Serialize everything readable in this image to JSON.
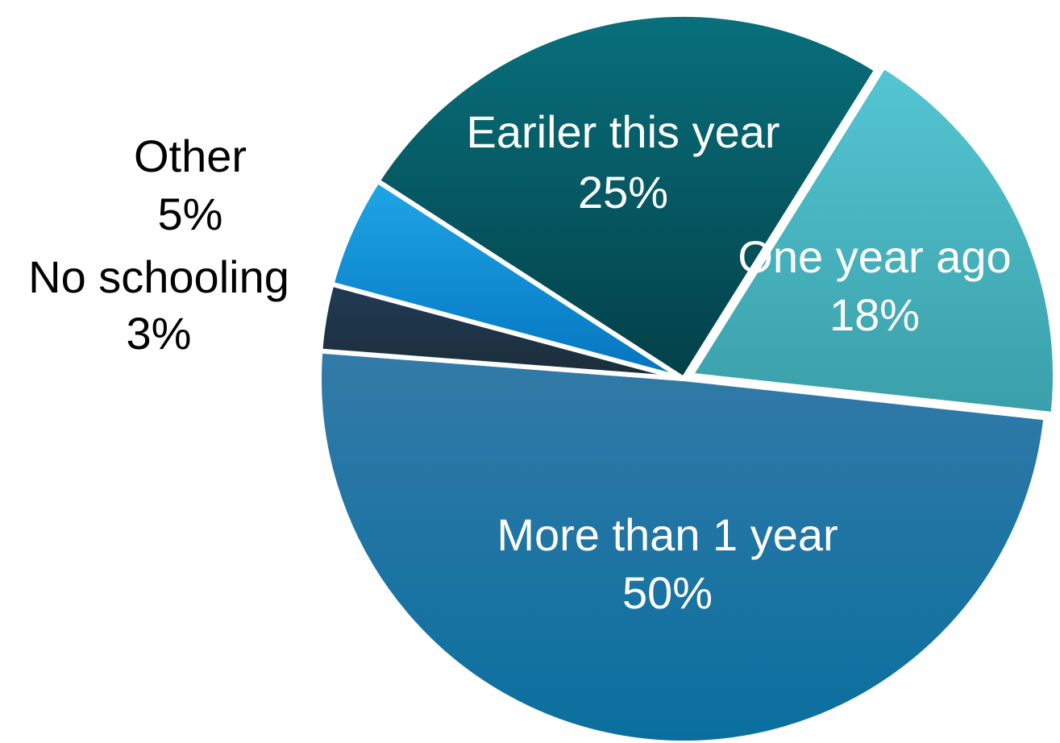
{
  "chart_data": {
    "type": "pie",
    "title": "",
    "slices": [
      {
        "name": "One year ago",
        "value": 18,
        "label_value": "18%",
        "color_top": "#54c6d2",
        "color_bottom": "#3a9fa9",
        "label_color": "#ffffff",
        "label_position": "inside"
      },
      {
        "name": "More than 1 year",
        "value": 50,
        "label_value": "50%",
        "color_top": "#337aa8",
        "color_bottom": "#0a6f9e",
        "label_color": "#ffffff",
        "label_position": "inside"
      },
      {
        "name": "No schooling",
        "value": 3,
        "label_value": "3%",
        "color_top": "#213a55",
        "color_bottom": "#1b2d39",
        "label_color": "#000000",
        "label_position": "outside"
      },
      {
        "name": "Other",
        "value": 5,
        "label_value": "5%",
        "color_top": "#1fa6e6",
        "color_bottom": "#0474bf",
        "label_color": "#000000",
        "label_position": "outside"
      },
      {
        "name": "Eariler this year",
        "value": 25,
        "label_value": "25%",
        "color_top": "#08707c",
        "color_bottom": "#034048",
        "label_color": "#ffffff",
        "label_position": "inside"
      }
    ],
    "start_angle_deg": -58,
    "direction": "clockwise",
    "legend": "none",
    "separator_color": "#ffffff"
  }
}
